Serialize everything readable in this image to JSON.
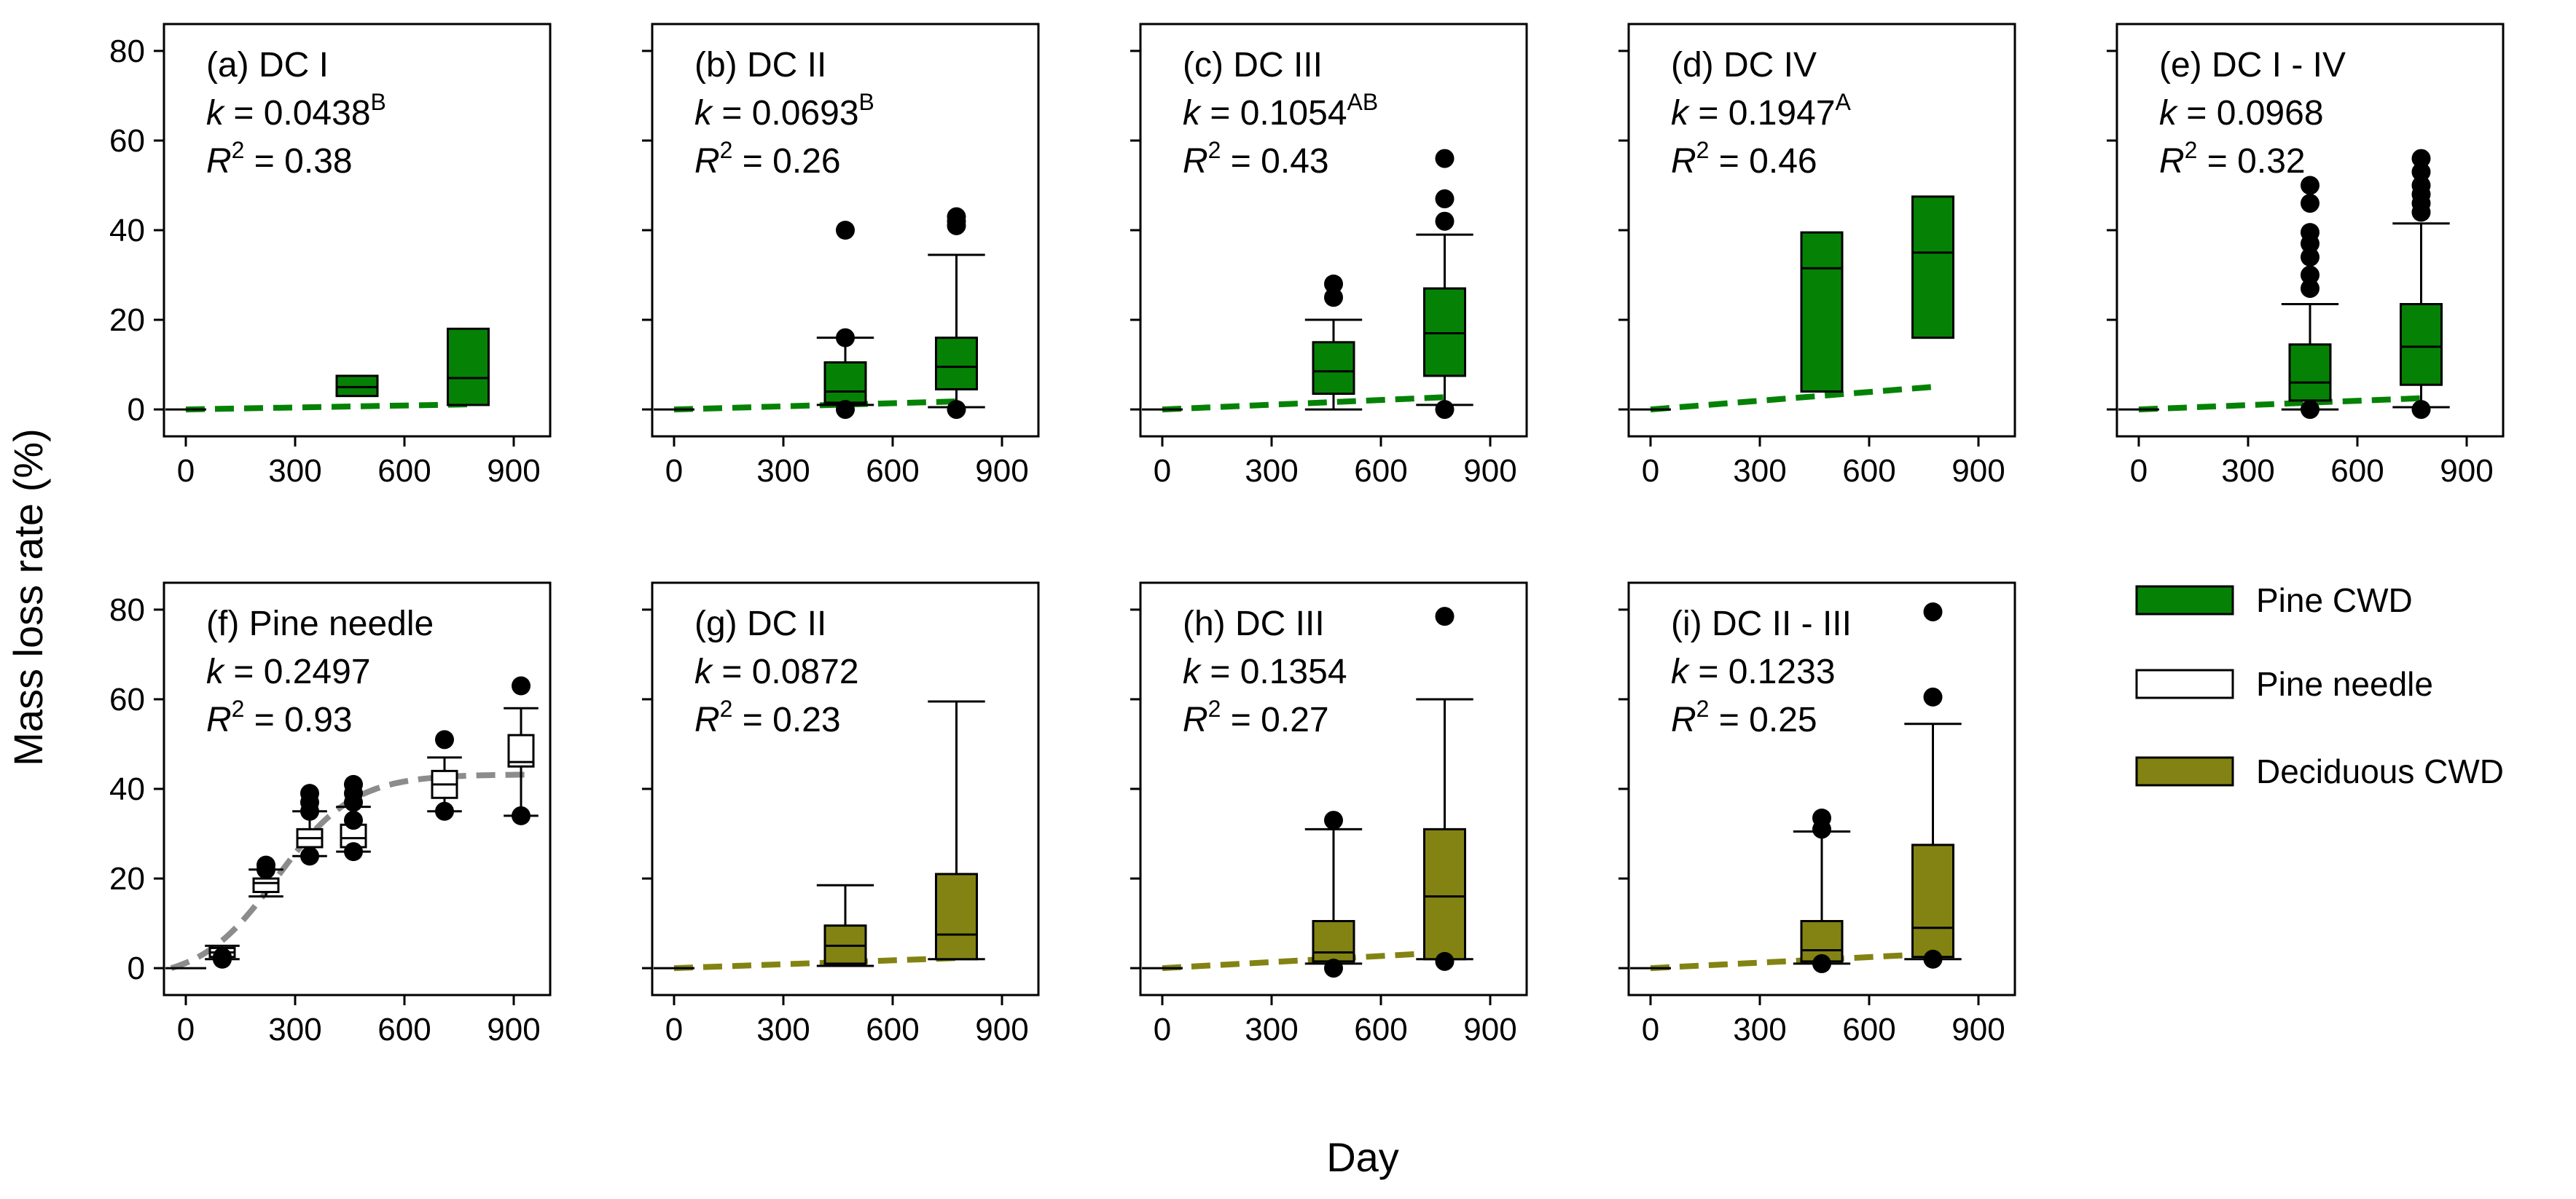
{
  "figure": {
    "ylabel": "Mass loss rate (%)",
    "xlabel": "Day",
    "colors": {
      "pine_cwd": "#058205",
      "pine_needle": "#ffffff",
      "deciduous_cwd": "#838313",
      "needle_fit": "#8c8c8c"
    }
  },
  "legend": {
    "placement": "middle-right",
    "items": [
      {
        "label": "Pine CWD",
        "color": "#058205"
      },
      {
        "label": "Pine needle",
        "color": "#ffffff"
      },
      {
        "label": "Deciduous CWD",
        "color": "#838313"
      }
    ]
  },
  "chart_data": [
    {
      "id": "a",
      "type": "box",
      "title": "(a) DC I",
      "k_label": "k",
      "k": "0.0438",
      "k_sup": "B",
      "r2": "0.38",
      "material": "pine_cwd",
      "xticks": [
        0,
        300,
        600,
        900
      ],
      "yticks": [
        0,
        20,
        40,
        60,
        80
      ],
      "show_yticks": true,
      "xlim": [
        -60,
        1000
      ],
      "ylim": [
        -6,
        86
      ],
      "fit": {
        "kind": "linear",
        "k": 0.0438,
        "x0": 0,
        "x1": 780
      },
      "boxes": [
        {
          "x": 0,
          "min": 0,
          "q1": 0,
          "median": 0,
          "q3": 0,
          "max": 0,
          "flat": true
        },
        {
          "x": 470,
          "min": 3,
          "q1": 3,
          "median": 5,
          "q3": 7.5,
          "max": 7.5,
          "nowhisker": true
        },
        {
          "x": 775,
          "min": 1,
          "q1": 1,
          "median": 7,
          "q3": 18,
          "max": 18,
          "nowhisker": true
        }
      ]
    },
    {
      "id": "b",
      "type": "box",
      "title": "(b) DC II",
      "k_label": "k",
      "k": "0.0693",
      "k_sup": "B",
      "r2": "0.26",
      "material": "pine_cwd",
      "xticks": [
        0,
        300,
        600,
        900
      ],
      "yticks": [
        0,
        20,
        40,
        60,
        80
      ],
      "show_yticks": false,
      "xlim": [
        -60,
        1000
      ],
      "ylim": [
        -6,
        86
      ],
      "fit": {
        "kind": "linear",
        "k": 0.0693,
        "x0": 0,
        "x1": 780
      },
      "boxes": [
        {
          "x": 0,
          "min": 0,
          "q1": 0,
          "median": 0,
          "q3": 0,
          "max": 0,
          "flat": true
        },
        {
          "x": 470,
          "min": 1,
          "q1": 1.5,
          "median": 4,
          "q3": 10.5,
          "max": 16,
          "outliers": [
            40,
            16,
            0
          ]
        },
        {
          "x": 775,
          "min": 0.5,
          "q1": 4.5,
          "median": 9.5,
          "q3": 16,
          "max": 34.5,
          "outliers": [
            43,
            42,
            41,
            0
          ]
        }
      ]
    },
    {
      "id": "c",
      "type": "box",
      "title": "(c) DC III",
      "k_label": "k",
      "k": "0.1054",
      "k_sup": "AB",
      "r2": "0.43",
      "material": "pine_cwd",
      "xticks": [
        0,
        300,
        600,
        900
      ],
      "yticks": [
        0,
        20,
        40,
        60,
        80
      ],
      "show_yticks": false,
      "xlim": [
        -60,
        1000
      ],
      "ylim": [
        -6,
        86
      ],
      "fit": {
        "kind": "linear",
        "k": 0.1054,
        "x0": 0,
        "x1": 780
      },
      "boxes": [
        {
          "x": 0,
          "min": 0,
          "q1": 0,
          "median": 0,
          "q3": 0,
          "max": 0,
          "flat": true
        },
        {
          "x": 470,
          "min": 0,
          "q1": 3.5,
          "median": 8.5,
          "q3": 15,
          "max": 20,
          "outliers": [
            28,
            25
          ]
        },
        {
          "x": 775,
          "min": 1,
          "q1": 7.5,
          "median": 17,
          "q3": 27,
          "max": 39,
          "outliers": [
            56,
            47,
            42,
            0
          ]
        }
      ]
    },
    {
      "id": "d",
      "type": "box",
      "title": "(d) DC IV",
      "k_label": "k",
      "k": "0.1947",
      "k_sup": "A",
      "r2": "0.46",
      "material": "pine_cwd",
      "xticks": [
        0,
        300,
        600,
        900
      ],
      "yticks": [
        0,
        20,
        40,
        60,
        80
      ],
      "show_yticks": false,
      "xlim": [
        -60,
        1000
      ],
      "ylim": [
        -6,
        86
      ],
      "fit": {
        "kind": "linear",
        "k": 0.1947,
        "x0": 0,
        "x1": 780
      },
      "boxes": [
        {
          "x": 0,
          "min": 0,
          "q1": 0,
          "median": 0,
          "q3": 0,
          "max": 0,
          "flat": true
        },
        {
          "x": 470,
          "min": 4,
          "q1": 4,
          "median": 31.5,
          "q3": 39.5,
          "max": 39.5,
          "nowhisker": true
        },
        {
          "x": 775,
          "min": 16,
          "q1": 16,
          "median": 35,
          "q3": 47.5,
          "max": 47.5,
          "nowhisker": true
        }
      ]
    },
    {
      "id": "e",
      "type": "box",
      "title": "(e) DC I - IV",
      "k_label": "k",
      "k": "0.0968",
      "k_sup": "",
      "r2": "0.32",
      "material": "pine_cwd",
      "xticks": [
        0,
        300,
        600,
        900
      ],
      "yticks": [
        0,
        20,
        40,
        60,
        80
      ],
      "show_yticks": false,
      "xlim": [
        -60,
        1000
      ],
      "ylim": [
        -6,
        86
      ],
      "fit": {
        "kind": "linear",
        "k": 0.0968,
        "x0": 0,
        "x1": 780
      },
      "boxes": [
        {
          "x": 0,
          "min": 0,
          "q1": 0,
          "median": 0,
          "q3": 0,
          "max": 0,
          "flat": true
        },
        {
          "x": 470,
          "min": 0,
          "q1": 2,
          "median": 6,
          "q3": 14.5,
          "max": 23.5,
          "outliers": [
            50,
            46,
            39.5,
            37,
            34,
            30,
            27,
            0
          ]
        },
        {
          "x": 775,
          "min": 0.5,
          "q1": 5.5,
          "median": 14,
          "q3": 23.5,
          "max": 41.5,
          "outliers": [
            56,
            53,
            50,
            48,
            46,
            44,
            0
          ]
        }
      ]
    },
    {
      "id": "f",
      "type": "box",
      "title": "(f) Pine needle",
      "k_label": "k",
      "k": "0.2497",
      "k_sup": "",
      "r2": "0.93",
      "material": "pine_needle",
      "xticks": [
        0,
        300,
        600,
        900
      ],
      "yticks": [
        0,
        20,
        40,
        60,
        80
      ],
      "show_yticks": true,
      "xlim": [
        -60,
        1000
      ],
      "ylim": [
        -6,
        86
      ],
      "fit": {
        "kind": "sigmoid",
        "asym": 46,
        "k0": 0.0095,
        "mid": 250,
        "x0": -40,
        "x1": 940
      },
      "boxes": [
        {
          "x": 0,
          "min": 0,
          "q1": 0,
          "median": 0,
          "q3": 0,
          "max": 0,
          "flat": true
        },
        {
          "x": 100,
          "min": 2,
          "q1": 2.5,
          "median": 3.5,
          "q3": 4.5,
          "max": 5,
          "outliers": [
            2,
            2.5
          ]
        },
        {
          "x": 220,
          "min": 16,
          "q1": 17,
          "median": 19,
          "q3": 20,
          "max": 22,
          "outliers": [
            23,
            22
          ]
        },
        {
          "x": 340,
          "min": 25,
          "q1": 27,
          "median": 29,
          "q3": 31,
          "max": 35,
          "outliers": [
            39,
            37,
            35,
            25
          ]
        },
        {
          "x": 460,
          "min": 26,
          "q1": 27,
          "median": 29,
          "q3": 32,
          "max": 36,
          "outliers": [
            41,
            39,
            37,
            33,
            26
          ]
        },
        {
          "x": 710,
          "min": 35,
          "q1": 38,
          "median": 41,
          "q3": 44,
          "max": 47,
          "outliers": [
            51,
            35
          ]
        },
        {
          "x": 920,
          "min": 34,
          "q1": 45,
          "median": 46,
          "q3": 52,
          "max": 58,
          "outliers": [
            63,
            34
          ]
        }
      ]
    },
    {
      "id": "g",
      "type": "box",
      "title": "(g) DC II",
      "k_label": "k",
      "k": "0.0872",
      "k_sup": "",
      "r2": "0.23",
      "material": "deciduous_cwd",
      "xticks": [
        0,
        300,
        600,
        900
      ],
      "yticks": [
        0,
        20,
        40,
        60,
        80
      ],
      "show_yticks": false,
      "xlim": [
        -60,
        1000
      ],
      "ylim": [
        -6,
        86
      ],
      "fit": {
        "kind": "linear",
        "k": 0.0872,
        "x0": 0,
        "x1": 780
      },
      "boxes": [
        {
          "x": 0,
          "min": 0,
          "q1": 0,
          "median": 0,
          "q3": 0,
          "max": 0,
          "flat": true
        },
        {
          "x": 470,
          "min": 0.5,
          "q1": 1,
          "median": 5,
          "q3": 9.5,
          "max": 18.5
        },
        {
          "x": 775,
          "min": 2,
          "q1": 2,
          "median": 7.5,
          "q3": 21,
          "max": 59.5
        }
      ]
    },
    {
      "id": "h",
      "type": "box",
      "title": "(h) DC III",
      "k_label": "k",
      "k": "0.1354",
      "k_sup": "",
      "r2": "0.27",
      "material": "deciduous_cwd",
      "xticks": [
        0,
        300,
        600,
        900
      ],
      "yticks": [
        0,
        20,
        40,
        60,
        80
      ],
      "show_yticks": false,
      "xlim": [
        -60,
        1000
      ],
      "ylim": [
        -6,
        86
      ],
      "fit": {
        "kind": "linear",
        "k": 0.1354,
        "x0": 0,
        "x1": 780
      },
      "boxes": [
        {
          "x": 0,
          "min": 0,
          "q1": 0,
          "median": 0,
          "q3": 0,
          "max": 0,
          "flat": true
        },
        {
          "x": 470,
          "min": 1,
          "q1": 1.5,
          "median": 3.5,
          "q3": 10.5,
          "max": 31,
          "outliers": [
            33,
            0
          ]
        },
        {
          "x": 775,
          "min": 2,
          "q1": 2,
          "median": 16,
          "q3": 31,
          "max": 60,
          "outliers": [
            78.5,
            1.5
          ]
        }
      ]
    },
    {
      "id": "i",
      "type": "box",
      "title": "(i) DC II - III",
      "k_label": "k",
      "k": "0.1233",
      "k_sup": "",
      "r2": "0.25",
      "material": "deciduous_cwd",
      "xticks": [
        0,
        300,
        600,
        900
      ],
      "yticks": [
        0,
        20,
        40,
        60,
        80
      ],
      "show_yticks": false,
      "xlim": [
        -60,
        1000
      ],
      "ylim": [
        -6,
        86
      ],
      "fit": {
        "kind": "linear",
        "k": 0.1233,
        "x0": 0,
        "x1": 780
      },
      "boxes": [
        {
          "x": 0,
          "min": 0,
          "q1": 0,
          "median": 0,
          "q3": 0,
          "max": 0,
          "flat": true
        },
        {
          "x": 470,
          "min": 1,
          "q1": 1.5,
          "median": 4,
          "q3": 10.5,
          "max": 30.5,
          "outliers": [
            33.5,
            31,
            1
          ]
        },
        {
          "x": 775,
          "min": 2,
          "q1": 2.5,
          "median": 9,
          "q3": 27.5,
          "max": 54.5,
          "outliers": [
            79.5,
            60.5,
            2
          ]
        }
      ]
    }
  ]
}
